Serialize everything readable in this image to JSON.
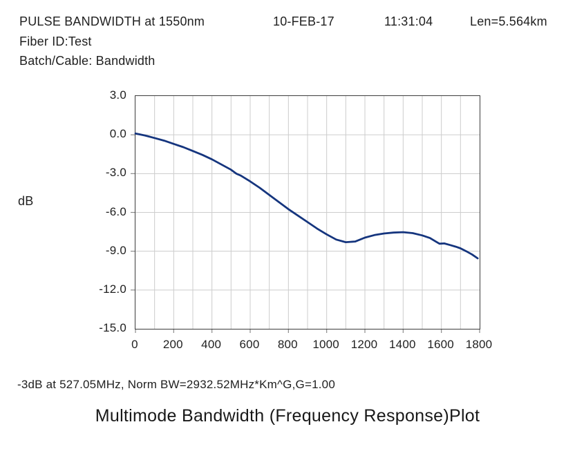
{
  "header": {
    "title": "PULSE BANDWIDTH at 1550nm",
    "date": "10-FEB-17",
    "time": "11:31:04",
    "length": "Len=5.564km",
    "fiber_id": "Fiber ID:Test",
    "batch_cable": "Batch/Cable: Bandwidth"
  },
  "footer": {
    "stats": "-3dB at 527.05MHz, Norm BW=2932.52MHz*Km^G,G=1.00",
    "caption": "Multimode Bandwidth (Frequency Response)Plot"
  },
  "chart_data": {
    "type": "line",
    "title": "Multimode Bandwidth (Frequency Response) Plot",
    "xlabel": "",
    "ylabel": "dB",
    "x_unit_hint": "MHz",
    "xlim": [
      0,
      1800
    ],
    "ylim": [
      -15.0,
      3.0
    ],
    "xticks": [
      0,
      200,
      400,
      600,
      800,
      1000,
      1200,
      1400,
      1600,
      1800
    ],
    "x_grid_step": 100,
    "yticks": [
      3.0,
      0.0,
      -3.0,
      -6.0,
      -9.0,
      -12.0,
      -15.0
    ],
    "ytick_labels": [
      "3.0",
      "0.0",
      "-3.0",
      "-6.0",
      "-9.0",
      "-12.0",
      "-15.0"
    ],
    "grid": true,
    "legend": "none",
    "grid_color": "#cccccc",
    "axis_tick_color": "#8a8a8a",
    "line_color": "#15357e",
    "line_width": 2.8,
    "annotations": {
      "minus3db_frequency_mhz": 527.05,
      "norm_bw": "2932.52MHz*Km^G",
      "g": 1.0
    },
    "series": [
      {
        "name": "frequency-response",
        "points": [
          [
            0,
            0.1
          ],
          [
            50,
            -0.05
          ],
          [
            100,
            -0.25
          ],
          [
            150,
            -0.45
          ],
          [
            200,
            -0.7
          ],
          [
            250,
            -0.95
          ],
          [
            300,
            -1.25
          ],
          [
            350,
            -1.55
          ],
          [
            400,
            -1.9
          ],
          [
            450,
            -2.3
          ],
          [
            500,
            -2.7
          ],
          [
            527,
            -3.0
          ],
          [
            550,
            -3.15
          ],
          [
            600,
            -3.6
          ],
          [
            650,
            -4.1
          ],
          [
            700,
            -4.65
          ],
          [
            750,
            -5.2
          ],
          [
            800,
            -5.75
          ],
          [
            850,
            -6.25
          ],
          [
            900,
            -6.75
          ],
          [
            950,
            -7.25
          ],
          [
            1000,
            -7.7
          ],
          [
            1050,
            -8.1
          ],
          [
            1100,
            -8.3
          ],
          [
            1150,
            -8.25
          ],
          [
            1200,
            -7.95
          ],
          [
            1250,
            -7.75
          ],
          [
            1300,
            -7.63
          ],
          [
            1350,
            -7.56
          ],
          [
            1400,
            -7.53
          ],
          [
            1450,
            -7.6
          ],
          [
            1500,
            -7.78
          ],
          [
            1540,
            -7.98
          ],
          [
            1570,
            -8.25
          ],
          [
            1590,
            -8.42
          ],
          [
            1615,
            -8.4
          ],
          [
            1645,
            -8.52
          ],
          [
            1675,
            -8.65
          ],
          [
            1700,
            -8.78
          ],
          [
            1730,
            -9.0
          ],
          [
            1760,
            -9.25
          ],
          [
            1790,
            -9.55
          ]
        ]
      }
    ]
  }
}
